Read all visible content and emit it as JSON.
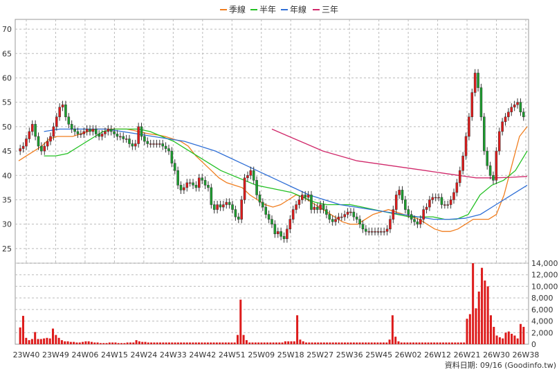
{
  "legend": [
    {
      "label": "季線",
      "color": "#f07d1e"
    },
    {
      "label": "半年",
      "color": "#22c022"
    },
    {
      "label": "年線",
      "color": "#2f6fd6"
    },
    {
      "label": "三年",
      "color": "#d0286a"
    }
  ],
  "footer": {
    "text": "資料日期: 09/16  (Goodinfo.tw)"
  },
  "colors": {
    "up": "#e01b1b",
    "down": "#1b9e2e",
    "volume": "#dd1b1b",
    "grid": "#bbbbbb",
    "frame": "#999999"
  },
  "chart_data": {
    "type": "candlestick",
    "x_tick_labels": [
      "23W40",
      "23W49",
      "24W06",
      "24W15",
      "24W24",
      "24W33",
      "24W42",
      "24W51",
      "25W09",
      "25W18",
      "25W27",
      "25W36",
      "25W45",
      "26W02",
      "26W12",
      "26W21",
      "26W30",
      "26W38"
    ],
    "price_axis": {
      "ticks": [
        25,
        30,
        35,
        40,
        45,
        50,
        55,
        60,
        65,
        70
      ],
      "ylim": [
        22,
        72
      ]
    },
    "volume_axis": {
      "ticks": [
        "0",
        "2,000",
        "4,000",
        "6,000",
        "8,000",
        "10,000",
        "12,000",
        "14,000"
      ],
      "ylim": [
        0,
        14000
      ]
    },
    "price_series_close": [
      45.5,
      46,
      47.5,
      49,
      50.5,
      48,
      46,
      45,
      46,
      47,
      48,
      50,
      52,
      54,
      54.5,
      52,
      50.5,
      49.5,
      49,
      48.5,
      48.5,
      49,
      49.5,
      49,
      49.5,
      48.5,
      48,
      48.5,
      49,
      49.5,
      49,
      48.5,
      48,
      48,
      47.5,
      47.5,
      46.5,
      46,
      46.5,
      50,
      48,
      47,
      46.5,
      46.5,
      46.5,
      46.5,
      46.5,
      46,
      45.5,
      45,
      42.5,
      41,
      38,
      37,
      37.5,
      38.5,
      38.5,
      38,
      37.5,
      39.5,
      39,
      38,
      37.5,
      34,
      33,
      34,
      33.5,
      34,
      34.5,
      34,
      33,
      31.5,
      31,
      35,
      39.5,
      40,
      41,
      39,
      36,
      34.5,
      33.5,
      32,
      31,
      30,
      28,
      28.5,
      27.5,
      27,
      29,
      31,
      33,
      34,
      35,
      36,
      35.5,
      36,
      33,
      33.5,
      33,
      34,
      33,
      32,
      31,
      30.5,
      31,
      31.5,
      31.5,
      32,
      32.5,
      32.5,
      31.5,
      31,
      30,
      29,
      28.5,
      28.5,
      28.5,
      28.5,
      28.5,
      28.5,
      28.5,
      29,
      31,
      33,
      36,
      37,
      35,
      33,
      32,
      31,
      30.5,
      30,
      31,
      33,
      33.5,
      35,
      35.5,
      35.5,
      35.5,
      34,
      34,
      34,
      35,
      36.5,
      38.5,
      41,
      44,
      48,
      52,
      57,
      61,
      58,
      52,
      45,
      42,
      40,
      39,
      45,
      49,
      51,
      52,
      53,
      54,
      54.5,
      55,
      53,
      52
    ],
    "volume_series": [
      2900,
      4900,
      1100,
      700,
      900,
      2100,
      900,
      900,
      1000,
      1100,
      1000,
      2700,
      1600,
      1100,
      700,
      500,
      500,
      400,
      400,
      300,
      300,
      400,
      500,
      500,
      400,
      300,
      300,
      200,
      200,
      200,
      300,
      300,
      300,
      200,
      200,
      200,
      300,
      300,
      300,
      700,
      500,
      400,
      400,
      300,
      300,
      300,
      300,
      300,
      300,
      300,
      300,
      300,
      300,
      300,
      300,
      300,
      300,
      300,
      300,
      300,
      300,
      300,
      300,
      300,
      300,
      300,
      300,
      300,
      300,
      300,
      300,
      300,
      300,
      1600,
      7700,
      1600,
      700,
      300,
      300,
      300,
      300,
      300,
      300,
      300,
      300,
      300,
      300,
      300,
      300,
      500,
      500,
      500,
      500,
      5000,
      800,
      500,
      300,
      300,
      300,
      300,
      300,
      300,
      300,
      300,
      300,
      300,
      300,
      300,
      300,
      300,
      300,
      300,
      300,
      300,
      300,
      300,
      300,
      300,
      300,
      300,
      300,
      300,
      300,
      300,
      800,
      5000,
      1300,
      500,
      300,
      300,
      300,
      300,
      300,
      300,
      300,
      300,
      300,
      300,
      300,
      300,
      300,
      300,
      300,
      300,
      300,
      300,
      300,
      300,
      300,
      300,
      4400,
      5200,
      14000,
      6200,
      9100,
      13200,
      11000,
      10000,
      5000,
      3000,
      1500,
      1200,
      1000,
      2000,
      2200,
      1800,
      1500,
      1000,
      3500,
      3000
    ],
    "series": [
      {
        "name": "季線",
        "values_close": [
          43,
          44,
          45,
          46,
          47.5,
          48,
          48,
          48,
          48.5,
          49,
          49.5,
          49.5,
          49.5,
          49.5,
          49.5,
          49.2,
          48.8,
          48.5,
          48.3,
          48,
          47.5,
          47,
          46,
          44,
          42.5,
          41,
          39.5,
          38.5,
          38,
          37.5,
          36,
          35,
          34,
          33.5,
          34,
          35,
          36,
          35.5,
          34.5,
          33.5,
          32.5,
          31.5,
          30.5,
          30,
          30,
          31,
          32,
          32.5,
          33,
          32.5,
          32,
          31.5,
          31,
          30,
          29,
          28.5,
          28.5,
          29,
          30,
          31,
          31,
          31,
          32,
          36,
          42,
          48,
          50
        ]
      },
      {
        "name": "半年",
        "values_close": [
          44,
          44,
          44.5,
          46,
          47.5,
          49,
          49.5,
          49.5,
          49.5,
          49,
          48,
          47,
          45.5,
          44,
          42.5,
          41,
          40,
          39,
          38,
          37.5,
          37,
          36.5,
          35.5,
          34.5,
          34,
          34,
          34,
          33.5,
          33,
          32.5,
          32,
          31.5,
          31.5,
          31.5,
          31,
          31,
          32,
          36,
          38,
          39,
          41,
          45
        ]
      },
      {
        "name": "年線",
        "values_close": [
          49,
          49.5,
          49.5,
          49.5,
          49.5,
          49,
          48.5,
          48,
          47.5,
          47,
          46,
          45,
          43.5,
          42,
          40.5,
          39,
          37.5,
          36,
          35,
          34,
          33.5,
          33,
          32.5,
          32,
          31.5,
          31,
          31,
          31.2,
          32,
          34,
          36,
          38
        ]
      },
      {
        "name": "三年",
        "values_close": [
          49.5,
          48,
          46.5,
          45,
          44,
          43,
          42.5,
          42,
          41.5,
          41,
          40.5,
          40,
          39.5,
          39.5,
          39.6,
          39.8
        ]
      }
    ]
  }
}
